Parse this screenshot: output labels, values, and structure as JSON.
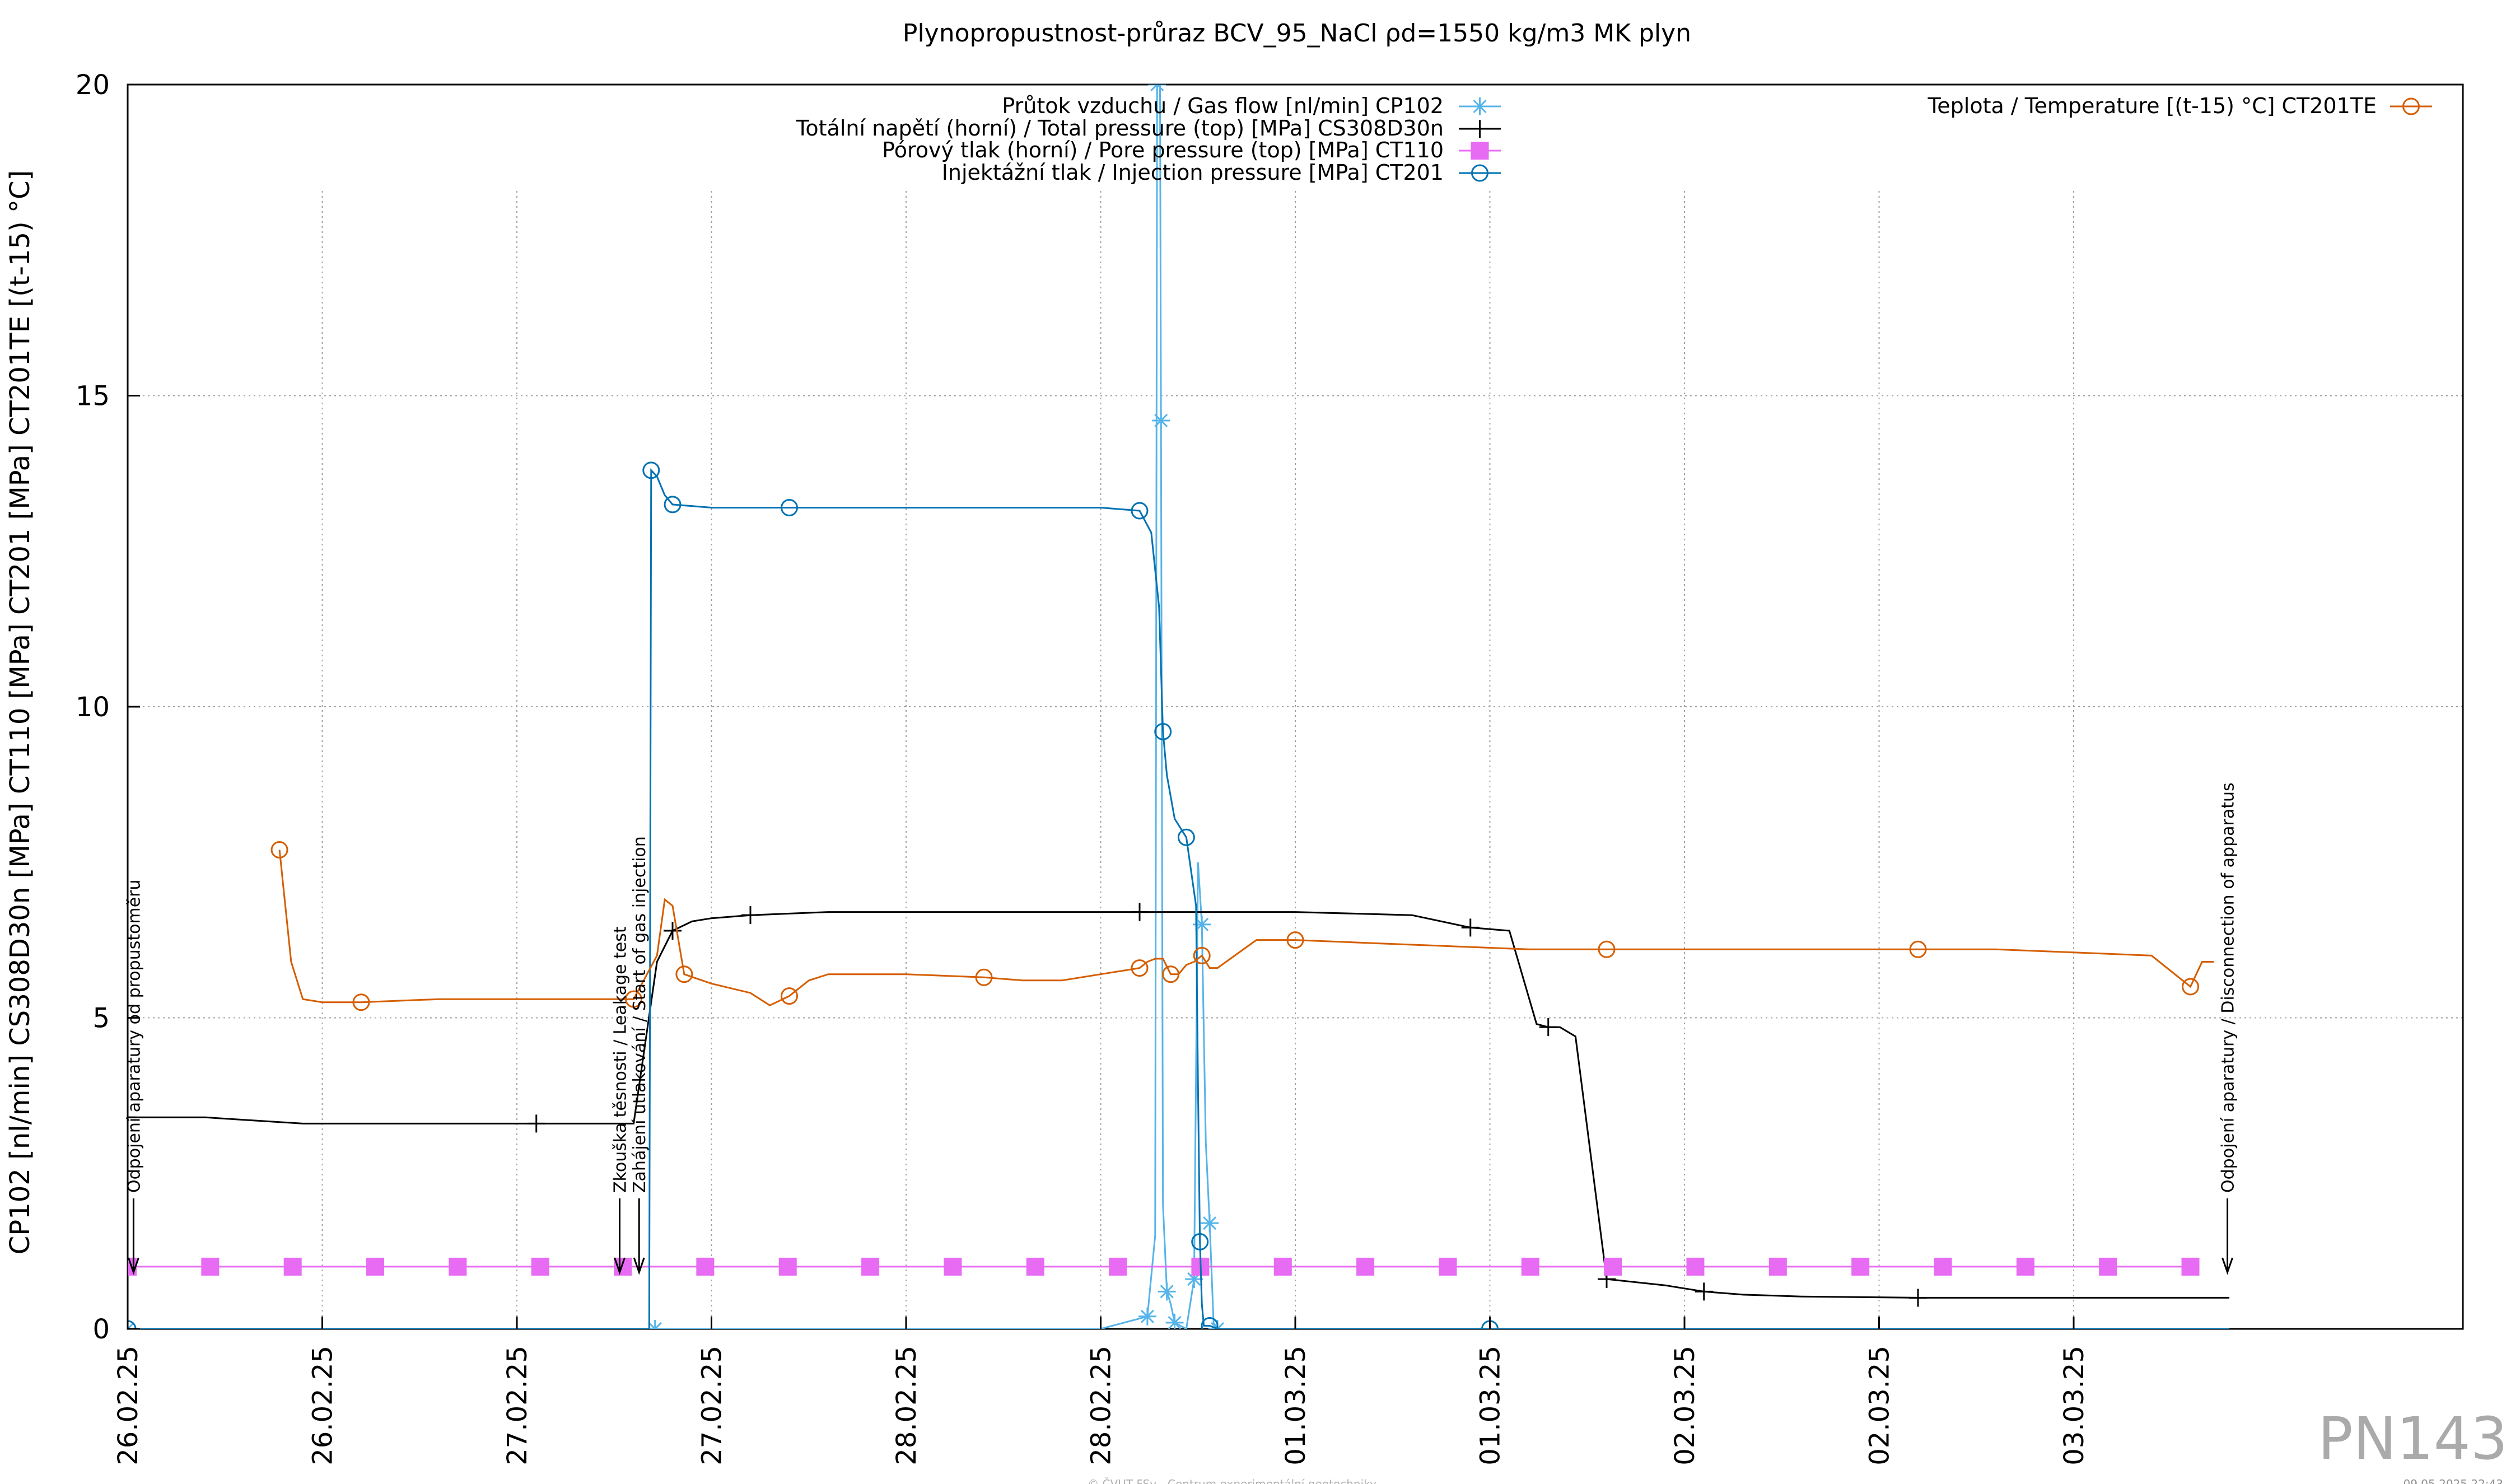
{
  "chart_data": {
    "type": "line",
    "title": "Plynopropustnost-průraz BCV_95_NaCl ρd=1550 kg/m3 MK plyn",
    "ylabel": "CP102 [nl/min] CS308D30n [MPa] CT110 [MPa] CT201 [MPa] CT201TE [(t-15) °C]",
    "xlabel": "",
    "ylim": [
      0,
      20
    ],
    "xlim": [
      0,
      6.0
    ],
    "grid": true,
    "y_ticks": [
      "0",
      "5",
      "10",
      "15",
      "20"
    ],
    "y_tick_values": [
      0,
      5,
      10,
      15,
      20
    ],
    "x_tick_labels": [
      "26.02.25",
      "26.02.25",
      "27.02.25",
      "27.02.25",
      "28.02.25",
      "28.02.25",
      "01.03.25",
      "01.03.25",
      "02.03.25",
      "02.03.25",
      "03.03.25"
    ],
    "x_tick_values": [
      0,
      0.5,
      1.0,
      1.5,
      2.0,
      2.5,
      3.0,
      3.5,
      4.0,
      4.5,
      5.0
    ],
    "legend_placement": "top-center and top-right",
    "series": [
      {
        "name": "Průtok vzduchu / Gas flow [nl/min] CP102",
        "color": "#56b4e9",
        "marker": "asterisk",
        "x": [
          0,
          1.35,
          1.355,
          2.5,
          2.62,
          2.64,
          2.645,
          2.65,
          2.655,
          2.66,
          2.67,
          2.68,
          2.69,
          2.72,
          2.74,
          2.75,
          2.76,
          2.77,
          2.78,
          2.79,
          2.8,
          5.4
        ],
        "values": [
          0,
          0,
          0,
          0,
          0.2,
          1.5,
          20,
          25,
          14.6,
          2.0,
          0.6,
          0.4,
          0.1,
          0,
          0.8,
          7.5,
          6.5,
          3.0,
          1.7,
          0.1,
          0,
          0
        ]
      },
      {
        "name": "Totální napětí (horní) / Total pressure (top) [MPa] CS308D30n",
        "color": "#000000",
        "marker": "plus",
        "x": [
          0,
          0.2,
          0.45,
          1.05,
          1.3,
          1.36,
          1.4,
          1.45,
          1.5,
          1.6,
          1.8,
          2.2,
          2.6,
          3.0,
          3.3,
          3.45,
          3.55,
          3.62,
          3.65,
          3.68,
          3.72,
          3.8,
          3.95,
          4.0,
          4.05,
          4.15,
          4.3,
          4.6,
          5.0,
          5.4
        ],
        "values": [
          3.4,
          3.4,
          3.3,
          3.3,
          3.3,
          5.9,
          6.4,
          6.55,
          6.6,
          6.65,
          6.7,
          6.7,
          6.7,
          6.7,
          6.65,
          6.45,
          6.4,
          4.9,
          4.85,
          4.85,
          4.7,
          0.8,
          0.7,
          0.65,
          0.6,
          0.55,
          0.52,
          0.5,
          0.5,
          0.5
        ]
      },
      {
        "name": "Pórový tlak (horní) / Pore pressure (top) [MPa] CT110",
        "color": "#e76bf3",
        "marker": "square",
        "x": [
          0,
          0.212,
          0.424,
          0.636,
          0.848,
          1.06,
          1.272,
          1.484,
          1.696,
          1.908,
          2.12,
          2.332,
          2.544,
          2.756,
          2.968,
          3.18,
          3.392,
          3.604,
          3.816,
          4.028,
          4.24,
          4.452,
          4.664,
          4.876,
          5.088,
          5.3
        ],
        "values": [
          1,
          1,
          1,
          1,
          1,
          1,
          1,
          1,
          1,
          1,
          1,
          1,
          1,
          1,
          1,
          1,
          1,
          1,
          1,
          1,
          1,
          1,
          1,
          1,
          1,
          1
        ]
      },
      {
        "name": "Injektážní tlak / Injection pressure [MPa] CT201",
        "color": "#0072b2",
        "marker": "circle",
        "x": [
          0,
          1.3,
          1.34,
          1.345,
          1.36,
          1.38,
          1.4,
          1.5,
          1.65,
          1.7,
          2.0,
          2.5,
          2.6,
          2.63,
          2.65,
          2.66,
          2.67,
          2.69,
          2.72,
          2.745,
          2.75,
          2.755,
          2.76,
          2.765,
          2.78,
          2.8,
          3.0,
          3.5,
          4.0,
          5.4
        ],
        "values": [
          0,
          0,
          0,
          13.8,
          13.7,
          13.4,
          13.25,
          13.2,
          13.2,
          13.2,
          13.2,
          13.2,
          13.15,
          12.8,
          11.6,
          9.6,
          8.9,
          8.2,
          7.9,
          6.8,
          3.9,
          1.4,
          0.4,
          0.05,
          0.05,
          0,
          0,
          0,
          0,
          0
        ]
      },
      {
        "name": "Teplota / Temperature [(t-15) °C] CT201TE",
        "color": "#d55e00",
        "marker": "circle",
        "x": [
          0.39,
          0.42,
          0.45,
          0.5,
          0.6,
          0.8,
          1.0,
          1.2,
          1.3,
          1.36,
          1.38,
          1.4,
          1.43,
          1.5,
          1.6,
          1.65,
          1.7,
          1.75,
          1.8,
          2.0,
          2.2,
          2.3,
          2.4,
          2.5,
          2.6,
          2.62,
          2.64,
          2.66,
          2.68,
          2.7,
          2.72,
          2.74,
          2.76,
          2.78,
          2.8,
          2.9,
          3.0,
          3.2,
          3.4,
          3.6,
          3.8,
          4.0,
          4.2,
          4.4,
          4.6,
          4.8,
          5.0,
          5.2,
          5.3,
          5.33,
          5.36
        ],
        "values": [
          7.7,
          5.9,
          5.3,
          5.25,
          5.25,
          5.3,
          5.3,
          5.3,
          5.3,
          6.0,
          6.9,
          6.8,
          5.7,
          5.55,
          5.4,
          5.2,
          5.35,
          5.6,
          5.7,
          5.7,
          5.65,
          5.6,
          5.6,
          5.7,
          5.8,
          5.9,
          5.95,
          5.95,
          5.7,
          5.7,
          5.85,
          5.9,
          6.0,
          5.8,
          5.8,
          6.25,
          6.25,
          6.2,
          6.15,
          6.1,
          6.1,
          6.1,
          6.1,
          6.1,
          6.1,
          6.1,
          6.05,
          6.0,
          5.5,
          5.9,
          5.9
        ]
      }
    ],
    "annotations": [
      {
        "text": "Odpojení aparatury od propustoměru",
        "x": 0.015
      },
      {
        "text": "Zkouška těsnosti / Leakage test",
        "x": 1.264
      },
      {
        "text": "Zahájení utlakování / Start of gas injection",
        "x": 1.314
      },
      {
        "text": "Odpojení aparatury / Disconnection of apparatus",
        "x": 5.395
      }
    ]
  },
  "watermark": "PN143",
  "footer_center": "© ČVUT FSv - Centrum experimentální geotechniky",
  "footer_right": "09.05.2025 22:43"
}
